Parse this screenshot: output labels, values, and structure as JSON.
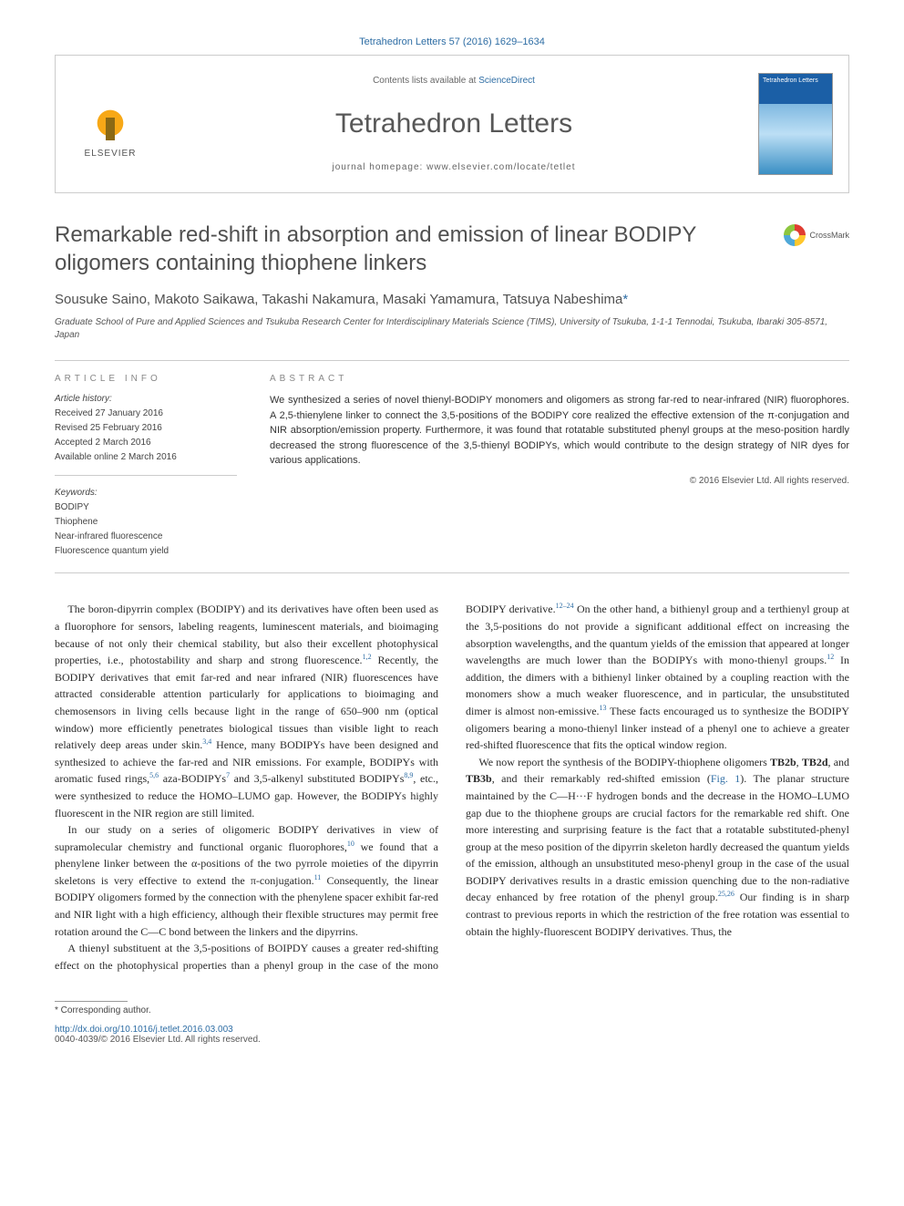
{
  "header": {
    "citation": "Tetrahedron Letters 57 (2016) 1629–1634",
    "contents_prefix": "Contents lists available at ",
    "contents_link": "ScienceDirect",
    "journal": "Tetrahedron Letters",
    "homepage_label": "journal homepage: www.elsevier.com/locate/tetlet",
    "publisher_label": "ELSEVIER",
    "cover_title": "Tetrahedron Letters"
  },
  "crossmark_label": "CrossMark",
  "title": "Remarkable red-shift in absorption and emission of linear BODIPY oligomers containing thiophene linkers",
  "authors": "Sousuke Saino, Makoto Saikawa, Takashi Nakamura, Masaki Yamamura, Tatsuya Nabeshima",
  "corr_mark": "*",
  "affiliation": "Graduate School of Pure and Applied Sciences and Tsukuba Research Center for Interdisciplinary Materials Science (TIMS), University of Tsukuba, 1-1-1 Tennodai, Tsukuba, Ibaraki 305-8571, Japan",
  "info": {
    "head": "ARTICLE INFO",
    "history_label": "Article history:",
    "received": "Received 27 January 2016",
    "revised": "Revised 25 February 2016",
    "accepted": "Accepted 2 March 2016",
    "online": "Available online 2 March 2016",
    "keywords_label": "Keywords:",
    "kw1": "BODIPY",
    "kw2": "Thiophene",
    "kw3": "Near-infrared fluorescence",
    "kw4": "Fluorescence quantum yield"
  },
  "abstract": {
    "head": "ABSTRACT",
    "text": "We synthesized a series of novel thienyl-BODIPY monomers and oligomers as strong far-red to near-infrared (NIR) fluorophores. A 2,5-thienylene linker to connect the 3,5-positions of the BODIPY core realized the effective extension of the π-conjugation and NIR absorption/emission property. Furthermore, it was found that rotatable substituted phenyl groups at the meso-position hardly decreased the strong fluorescence of the 3,5-thienyl BODIPYs, which would contribute to the design strategy of NIR dyes for various applications.",
    "copyright": "© 2016 Elsevier Ltd. All rights reserved."
  },
  "body": {
    "p1a": "The boron-dipyrrin complex (BODIPY) and its derivatives have often been used as a fluorophore for sensors, labeling reagents, luminescent materials, and bioimaging because of not only their chemical stability, but also their excellent photophysical properties, i.e., photostability and sharp and strong fluorescence.",
    "p1b": " Recently, the BODIPY derivatives that emit far-red and near infrared (NIR) fluorescences have attracted considerable attention particularly for applications to bioimaging and chemosensors in living cells because light in the range of 650–900 nm (optical window) more efficiently penetrates biological tissues than visible light to reach relatively deep areas under skin.",
    "p1c": " Hence, many BODIPYs have been designed and synthesized to achieve the far-red and NIR emissions. For example, BODIPYs with aromatic fused rings,",
    "p1d": " aza-BODIPYs",
    "p1e": " and 3,5-alkenyl substituted BODIPYs",
    "p1f": ", etc., were synthesized to reduce the HOMO–LUMO gap. However, the BODIPYs highly fluorescent in the NIR region are still limited.",
    "p2a": "In our study on a series of oligomeric BODIPY derivatives in view of supramolecular chemistry and functional organic fluorophores,",
    "p2b": " we found that a phenylene linker between the α-positions of the two pyrrole moieties of the dipyrrin skeletons is very effective to extend the π-conjugation.",
    "p2c": " Consequently, the linear BODIPY oligomers formed by the connection with the phenylene spacer exhibit far-red and NIR light with a high efficiency, although their flexible structures may permit free rotation around the C—C bond between the linkers and the dipyrrins.",
    "p3a": "A thienyl substituent at the 3,5-positions of BOIPDY causes a greater red-shifting effect on the photophysical properties than a phenyl group in the case of the mono BODIPY derivative.",
    "p3b": " On the other hand, a bithienyl group and a terthienyl group at the 3,5-positions do not provide a significant additional effect on increasing the absorption wavelengths, and the quantum yields of the emission that appeared at longer wavelengths are much lower than the BODIPYs with mono-thienyl groups.",
    "p3c": " In addition, the dimers with a bithienyl linker obtained by a coupling reaction with the monomers show a much weaker fluorescence, and in particular, the unsubstituted dimer is almost non-emissive.",
    "p3d": " These facts encouraged us to synthesize the BODIPY oligomers bearing a mono-thienyl linker instead of a phenyl one to achieve a greater red-shifted fluorescence that fits the optical window region.",
    "p4a": "We now report the synthesis of the BODIPY-thiophene oligomers ",
    "p4tb2b": "TB2b",
    "p4comma1": ", ",
    "p4tb2d": "TB2d",
    "p4and": ", and ",
    "p4tb3b": "TB3b",
    "p4b": ", and their remarkably red-shifted emission (",
    "p4fig": "Fig. 1",
    "p4c": "). The planar structure maintained by the C—H···F hydrogen bonds and the decrease in the HOMO–LUMO gap due to the thiophene groups are crucial factors for the remarkable red shift. One more interesting and surprising feature is the fact that a rotatable substituted-phenyl group at the meso position of the dipyrrin skeleton hardly decreased the quantum yields of the emission, although an unsubstituted meso-phenyl group in the case of the usual BODIPY derivatives results in a drastic emission quenching due to the non-radiative decay enhanced by free rotation of the phenyl group.",
    "p4d": " Our finding is in sharp contrast to previous reports in which the restriction of the free rotation was essential to obtain the highly-fluorescent BODIPY derivatives. Thus, the",
    "ref_1_2": "1,2",
    "ref_3_4": "3,4",
    "ref_5_6": "5,6",
    "ref_7": "7",
    "ref_8_9": "8,9",
    "ref_10": "10",
    "ref_11": "11",
    "ref_12_24": "12–24",
    "ref_12": "12",
    "ref_13": "13",
    "ref_25_26": "25,26"
  },
  "footnote": {
    "mark": "*",
    "text": " Corresponding author."
  },
  "footer": {
    "doi": "http://dx.doi.org/10.1016/j.tetlet.2016.03.003",
    "issn": "0040-4039/© 2016 Elsevier Ltd. All rights reserved."
  },
  "colors": {
    "link": "#2e6da4",
    "text": "#333333",
    "heading_gray": "#888888",
    "rule": "#cccccc"
  }
}
